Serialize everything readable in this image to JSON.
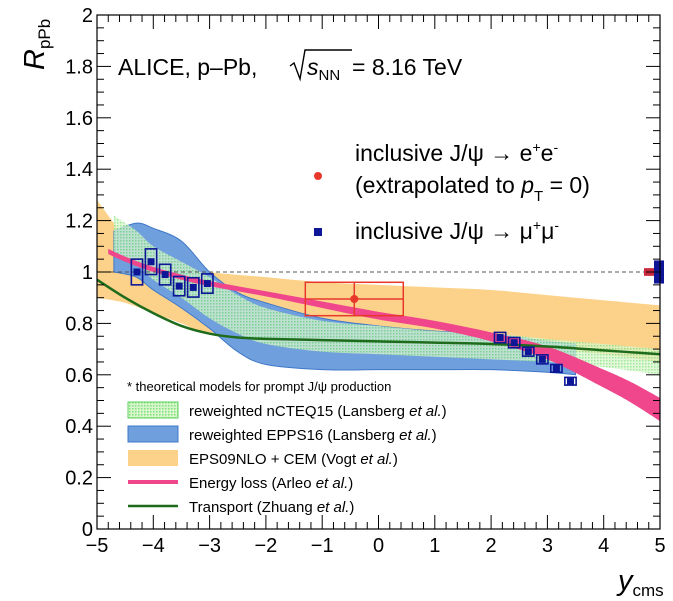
{
  "chart_data": {
    "type": "line",
    "ylabel_main": "R",
    "ylabel_sub": "pPb",
    "xlabel_main": "y",
    "xlabel_sub": "cms",
    "xlim": [
      -5,
      5
    ],
    "ylim": [
      0,
      2
    ],
    "xticks": [
      "−5",
      "−4",
      "−3",
      "−2",
      "−1",
      "0",
      "1",
      "2",
      "3",
      "4",
      "5"
    ],
    "xtick_values": [
      -5,
      -4,
      -3,
      -2,
      -1,
      0,
      1,
      2,
      3,
      4,
      5
    ],
    "yticks": [
      "0",
      "0.2",
      "0.4",
      "0.6",
      "0.8",
      "1",
      "1.2",
      "1.4",
      "1.6",
      "1.8",
      "2"
    ],
    "ytick_values": [
      0,
      0.2,
      0.4,
      0.6,
      0.8,
      1.0,
      1.2,
      1.4,
      1.6,
      1.8,
      2.0
    ],
    "experiment_label": "ALICE, p–Pb, ",
    "energy_label": " = 8.16 TeV",
    "sqrt_s_main": "s",
    "sqrt_s_sub": "NN",
    "legend_data": {
      "electron_line1": "inclusive J/ψ → e",
      "electron_line1_sup1": "+",
      "electron_line1_mid": "e",
      "electron_line1_sup2": "-",
      "electron_line2_pre": "(extrapolated to ",
      "electron_line2_p": "p",
      "electron_line2_sub": "T",
      "electron_line2_post": " = 0)",
      "muon_line": "inclusive J/ψ → μ",
      "muon_sup1": "+",
      "muon_mid": "μ",
      "muon_sup2": "-"
    },
    "legend_models": {
      "note": "* theoretical models for prompt J/ψ production",
      "items": [
        {
          "pre": "reweighted nCTEQ15 (Lansberg ",
          "it": "et al.",
          "post": ")"
        },
        {
          "pre": "reweighted EPPS16 (Lansberg ",
          "it": "et al.",
          "post": ")"
        },
        {
          "pre": "EPS09NLO + CEM (Vogt ",
          "it": "et al.",
          "post": ")"
        },
        {
          "pre": "Energy loss (Arleo ",
          "it": "et al.",
          "post": ")"
        },
        {
          "pre": "Transport (Zhuang ",
          "it": "et al.",
          "post": ")"
        }
      ]
    },
    "colors": {
      "ncteq": "#b9f0a8",
      "ncteq_edge": "#5fd25f",
      "epps": "#6f9fdc",
      "epps_edge": "#3f78c8",
      "eps09": "#fcd28a",
      "energy_loss": "#f0468c",
      "transport": "#1f6b1c",
      "electron": "#e8382c",
      "muon": "#0c1696",
      "muon_box": "#0c1696",
      "electron_box": "#e8382c",
      "global_ele": "#c8283c",
      "global_mu": "#0c1696"
    },
    "series": [
      {
        "kind": "points",
        "marker": "circle",
        "points": [
          {
            "x": -0.43,
            "y": 0.895,
            "xerr": 0.87,
            "sys": 0.065
          }
        ]
      },
      {
        "kind": "points",
        "marker": "square",
        "points": [
          {
            "x": -4.29,
            "y": 1.0,
            "sys": 0.1
          },
          {
            "x": -4.04,
            "y": 1.04,
            "sys": 0.1
          },
          {
            "x": -3.79,
            "y": 0.99,
            "sys": 0.08
          },
          {
            "x": -3.54,
            "y": 0.945,
            "sys": 0.075
          },
          {
            "x": -3.29,
            "y": 0.94,
            "sys": 0.075
          },
          {
            "x": -3.04,
            "y": 0.955,
            "sys": 0.075
          },
          {
            "x": 2.16,
            "y": 0.745,
            "sys": 0.04
          },
          {
            "x": 2.41,
            "y": 0.725,
            "sys": 0.04
          },
          {
            "x": 2.66,
            "y": 0.69,
            "sys": 0.035
          },
          {
            "x": 2.91,
            "y": 0.66,
            "sys": 0.035
          },
          {
            "x": 3.16,
            "y": 0.625,
            "sys": 0.03
          },
          {
            "x": 3.41,
            "y": 0.575,
            "sys": 0.03
          }
        ]
      }
    ],
    "bands": {
      "eps09": {
        "x": [
          -5.0,
          -4.5,
          -4.0,
          -3.5,
          -3.0,
          -2.0,
          -1.0,
          0.0,
          1.0,
          2.0,
          3.0,
          4.0,
          5.0
        ],
        "upper": [
          1.28,
          1.14,
          1.08,
          1.03,
          1.0,
          0.98,
          0.96,
          0.95,
          0.94,
          0.93,
          0.91,
          0.89,
          0.87
        ],
        "lower": [
          0.9,
          0.88,
          0.84,
          0.8,
          0.76,
          0.75,
          0.74,
          0.73,
          0.72,
          0.71,
          0.7,
          0.68,
          0.65
        ]
      },
      "epps": {
        "x": [
          -4.7,
          -4.3,
          -4.0,
          -3.5,
          -3.0,
          -2.5,
          -2.0,
          -1.0,
          0.0,
          1.0,
          2.0,
          3.0,
          3.5
        ],
        "upper": [
          1.16,
          1.19,
          1.17,
          1.12,
          1.0,
          0.92,
          0.88,
          0.82,
          0.79,
          0.77,
          0.76,
          0.73,
          0.72
        ],
        "lower": [
          1.0,
          0.98,
          0.93,
          0.86,
          0.78,
          0.69,
          0.64,
          0.62,
          0.62,
          0.62,
          0.62,
          0.61,
          0.6
        ]
      },
      "ncteq": {
        "x": [
          -4.7,
          -4.3,
          -4.0,
          -3.5,
          -3.0,
          -2.5,
          -2.0,
          -1.0,
          0.0,
          1.0,
          2.0,
          3.0,
          4.0,
          5.0
        ],
        "upper": [
          1.22,
          1.16,
          1.1,
          1.04,
          0.98,
          0.91,
          0.86,
          0.81,
          0.79,
          0.77,
          0.76,
          0.74,
          0.72,
          0.7
        ],
        "lower": [
          1.08,
          1.03,
          0.97,
          0.9,
          0.82,
          0.76,
          0.72,
          0.69,
          0.68,
          0.67,
          0.66,
          0.65,
          0.63,
          0.6
        ]
      },
      "energy_loss": {
        "x": [
          -4.8,
          -4.5,
          -4.0,
          -3.5,
          -3.0,
          -2.0,
          -1.0,
          0.0,
          1.0,
          2.0,
          3.0,
          4.0,
          4.5,
          5.0
        ],
        "upper": [
          1.09,
          1.06,
          1.02,
          0.99,
          0.965,
          0.925,
          0.885,
          0.845,
          0.81,
          0.765,
          0.71,
          0.62,
          0.57,
          0.51
        ],
        "lower": [
          1.07,
          1.04,
          1.0,
          0.97,
          0.945,
          0.905,
          0.86,
          0.815,
          0.78,
          0.73,
          0.66,
          0.55,
          0.49,
          0.42
        ]
      }
    },
    "transport_curve": {
      "x": [
        -5.0,
        -4.5,
        -4.0,
        -3.5,
        -3.0,
        -2.5,
        -2.0,
        -1.0,
        0.0,
        1.0,
        2.0,
        3.0,
        4.0,
        5.0
      ],
      "y": [
        0.97,
        0.9,
        0.84,
        0.79,
        0.76,
        0.745,
        0.74,
        0.735,
        0.73,
        0.725,
        0.72,
        0.71,
        0.695,
        0.68
      ]
    },
    "reference_line_y": 1.0,
    "global_uncertainty": {
      "electron_y": 1.0,
      "electron_half": 0.015,
      "muon_y": 1.0,
      "muon_half": 0.045
    }
  }
}
